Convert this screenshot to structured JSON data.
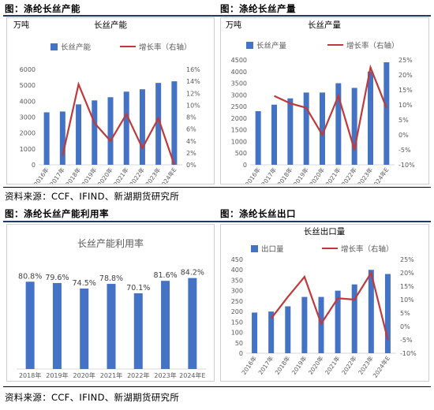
{
  "sections": {
    "top_left_title": "图：涤纶长丝产能",
    "top_right_title": "图：涤纶长丝产量",
    "bottom_left_title": "图：涤纶长丝产能利用率",
    "bottom_right_title": "图：涤纶长丝出口",
    "source_top": "资料来源：CCF、IFIND、新湖期货研究所",
    "source_bottom": "资料来源：CCF、IFIND、新湖期货研究所"
  },
  "colors": {
    "bar": "#4472c4",
    "line": "#c0393b",
    "axis": "#d9d9d9",
    "text": "#595959"
  },
  "chart_data": [
    {
      "type": "bar",
      "title": "长丝产能",
      "unit": "万吨",
      "categories": [
        "2016年",
        "2017年",
        "2018年",
        "2019年",
        "2020年",
        "2021年",
        "2022年",
        "2023年",
        "2024年E"
      ],
      "series": [
        {
          "name": "长丝产能",
          "type": "bar",
          "axis": "left",
          "values": [
            3300,
            3350,
            3800,
            4050,
            4250,
            4600,
            4750,
            5150,
            5250
          ]
        },
        {
          "name": "增长率（右轴）",
          "type": "line",
          "axis": "right",
          "values": [
            null,
            1.5,
            13.5,
            7.0,
            4.0,
            8.5,
            2.8,
            7.8,
            0.0
          ]
        }
      ],
      "ylim_left": [
        0,
        6000
      ],
      "yticks_left": [
        0,
        1000,
        2000,
        3000,
        4000,
        5000,
        6000
      ],
      "ylim_right": [
        0,
        16
      ],
      "yticks_right": [
        "0%",
        "2%",
        "4%",
        "6%",
        "8%",
        "10%",
        "12%",
        "14%",
        "16%"
      ],
      "legend": "top"
    },
    {
      "type": "bar",
      "title": "长丝产量",
      "unit": "万吨",
      "categories": [
        "2016年",
        "2017年",
        "2018年",
        "2019年",
        "2020年",
        "2021年",
        "2022年",
        "2023年",
        "2024年E"
      ],
      "series": [
        {
          "name": "长丝产量",
          "type": "bar",
          "axis": "left",
          "values": [
            2300,
            2580,
            2850,
            3100,
            3100,
            3500,
            3300,
            4000,
            4400
          ]
        },
        {
          "name": "增长率（右轴）",
          "type": "line",
          "axis": "right",
          "values": [
            null,
            13.0,
            10.5,
            9.0,
            0.0,
            13.0,
            -5.0,
            22.5,
            9.0
          ]
        }
      ],
      "ylim_left": [
        0,
        4500
      ],
      "yticks_left": [
        0,
        500,
        1000,
        1500,
        2000,
        2500,
        3000,
        3500,
        4000,
        4500
      ],
      "ylim_right": [
        -10,
        25
      ],
      "yticks_right": [
        "-10%",
        "-5%",
        "0%",
        "5%",
        "10%",
        "15%",
        "20%",
        "25%"
      ],
      "legend": "top"
    },
    {
      "type": "bar",
      "title": "长丝产能利用率",
      "categories": [
        "2018年",
        "2019年",
        "2020年",
        "2021年",
        "2022年",
        "2023年",
        "2024年E"
      ],
      "series": [
        {
          "name": "长丝产能利用率",
          "type": "bar",
          "values": [
            80.8,
            79.6,
            74.5,
            78.8,
            70.1,
            81.6,
            84.2
          ],
          "labels": [
            "80.8%",
            "79.6%",
            "74.5%",
            "78.8%",
            "70.1%",
            "81.6%",
            "84.2%"
          ]
        }
      ],
      "ylim": [
        0,
        100
      ]
    },
    {
      "type": "bar",
      "title": "长丝出口量",
      "categories": [
        "2016年",
        "2017年",
        "2018年",
        "2019年",
        "2020年",
        "2021年",
        "2022年",
        "2023年",
        "2024年E"
      ],
      "series": [
        {
          "name": "出口量",
          "type": "bar",
          "axis": "left",
          "values": [
            195,
            200,
            225,
            270,
            270,
            300,
            330,
            400,
            380
          ]
        },
        {
          "name": "增长率（右轴）",
          "type": "line",
          "axis": "right",
          "values": [
            null,
            3.0,
            11.0,
            18.5,
            1.0,
            10.5,
            10.0,
            20.0,
            -5.0
          ]
        }
      ],
      "ylim_left": [
        0,
        450
      ],
      "yticks_left": [
        0,
        50,
        100,
        150,
        200,
        250,
        300,
        350,
        400,
        450
      ],
      "ylim_right": [
        -10,
        25
      ],
      "yticks_right": [
        "-10%",
        "-5%",
        "0%",
        "5%",
        "10%",
        "15%",
        "20%",
        "25%"
      ],
      "legend": "top"
    }
  ]
}
